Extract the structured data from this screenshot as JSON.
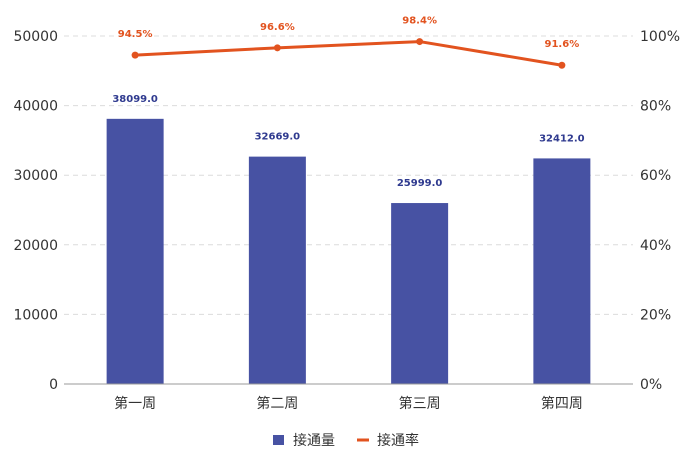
{
  "chart_data": {
    "type": "bar",
    "categories": [
      "第一周",
      "第二周",
      "第三周",
      "第四周"
    ],
    "series": [
      {
        "name": "接通量",
        "type": "bar",
        "axis": "left",
        "values": [
          38099.0,
          32669.0,
          25999.0,
          32412.0
        ],
        "labels": [
          "38099.0",
          "32669.0",
          "25999.0",
          "32412.0"
        ],
        "color": "#4752a3"
      },
      {
        "name": "接通率",
        "type": "line",
        "axis": "right",
        "values": [
          94.5,
          96.6,
          98.4,
          91.6
        ],
        "labels": [
          "94.5%",
          "96.6%",
          "98.4%",
          "91.6%"
        ],
        "color": "#e2531f"
      }
    ],
    "y_left": {
      "ylim": [
        0,
        50000
      ],
      "ticks": [
        "0",
        "10000",
        "20000",
        "30000",
        "40000",
        "50000"
      ]
    },
    "y_right": {
      "ylim": [
        0,
        100
      ],
      "ticks": [
        "0%",
        "20%",
        "40%",
        "60%",
        "80%",
        "100%"
      ]
    },
    "grid": true,
    "legend": "bottom-center"
  }
}
